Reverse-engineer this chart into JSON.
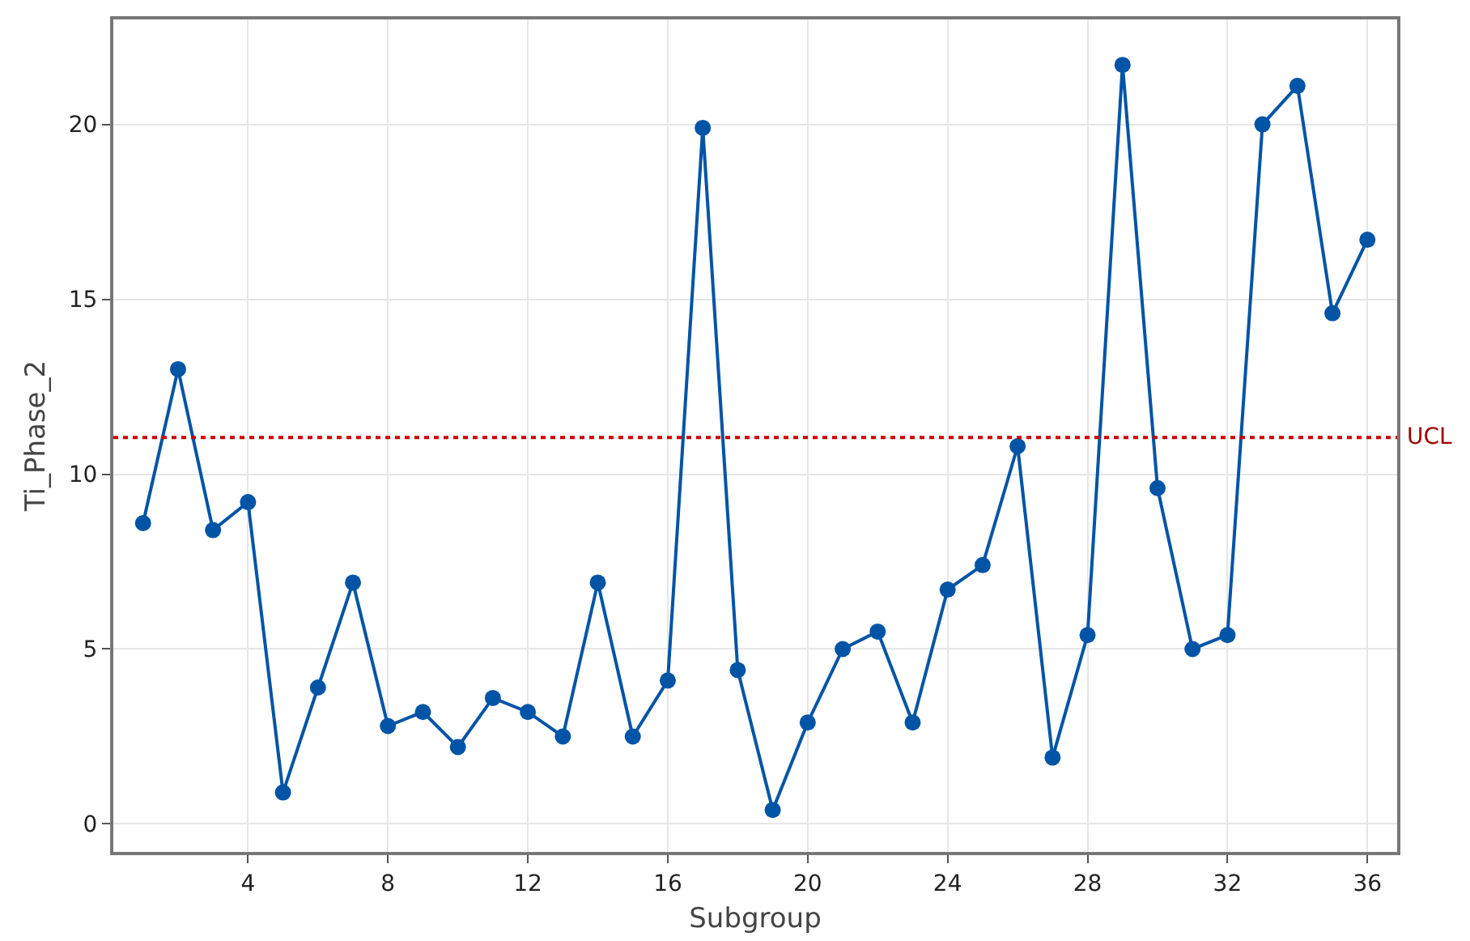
{
  "chart_data": {
    "type": "line",
    "xlabel": "Subgroup",
    "ylabel": "Ti_Phase_2",
    "x": [
      1,
      2,
      3,
      4,
      5,
      6,
      7,
      8,
      9,
      10,
      11,
      12,
      13,
      14,
      15,
      16,
      17,
      18,
      19,
      20,
      21,
      22,
      23,
      24,
      25,
      26,
      27,
      28,
      29,
      30,
      31,
      32,
      33,
      34,
      35,
      36
    ],
    "series": [
      {
        "color": "#0054a6",
        "values": [
          8.6,
          13.0,
          8.4,
          9.2,
          0.9,
          3.9,
          6.9,
          2.8,
          3.2,
          2.2,
          3.6,
          3.2,
          2.5,
          6.9,
          2.5,
          4.1,
          19.9,
          4.4,
          0.4,
          2.9,
          5.0,
          5.5,
          2.9,
          6.7,
          7.4,
          10.8,
          1.9,
          5.4,
          21.7,
          9.6,
          5.0,
          5.4,
          20.0,
          21.1,
          14.6,
          16.7
        ]
      }
    ],
    "marker": "circle",
    "line_style": "solid",
    "xlim": [
      0.15,
      36.85
    ],
    "xticks": [
      4,
      8,
      12,
      16,
      20,
      24,
      28,
      32,
      36
    ],
    "ylim": [
      -0.8,
      23
    ],
    "yticks": [
      0,
      5,
      10,
      15,
      20
    ],
    "grid": true,
    "ref_lines": [
      {
        "axis": "y",
        "value": 11.05,
        "label": "UCL",
        "color": "#cc0000",
        "line_style": "dotted"
      }
    ]
  }
}
